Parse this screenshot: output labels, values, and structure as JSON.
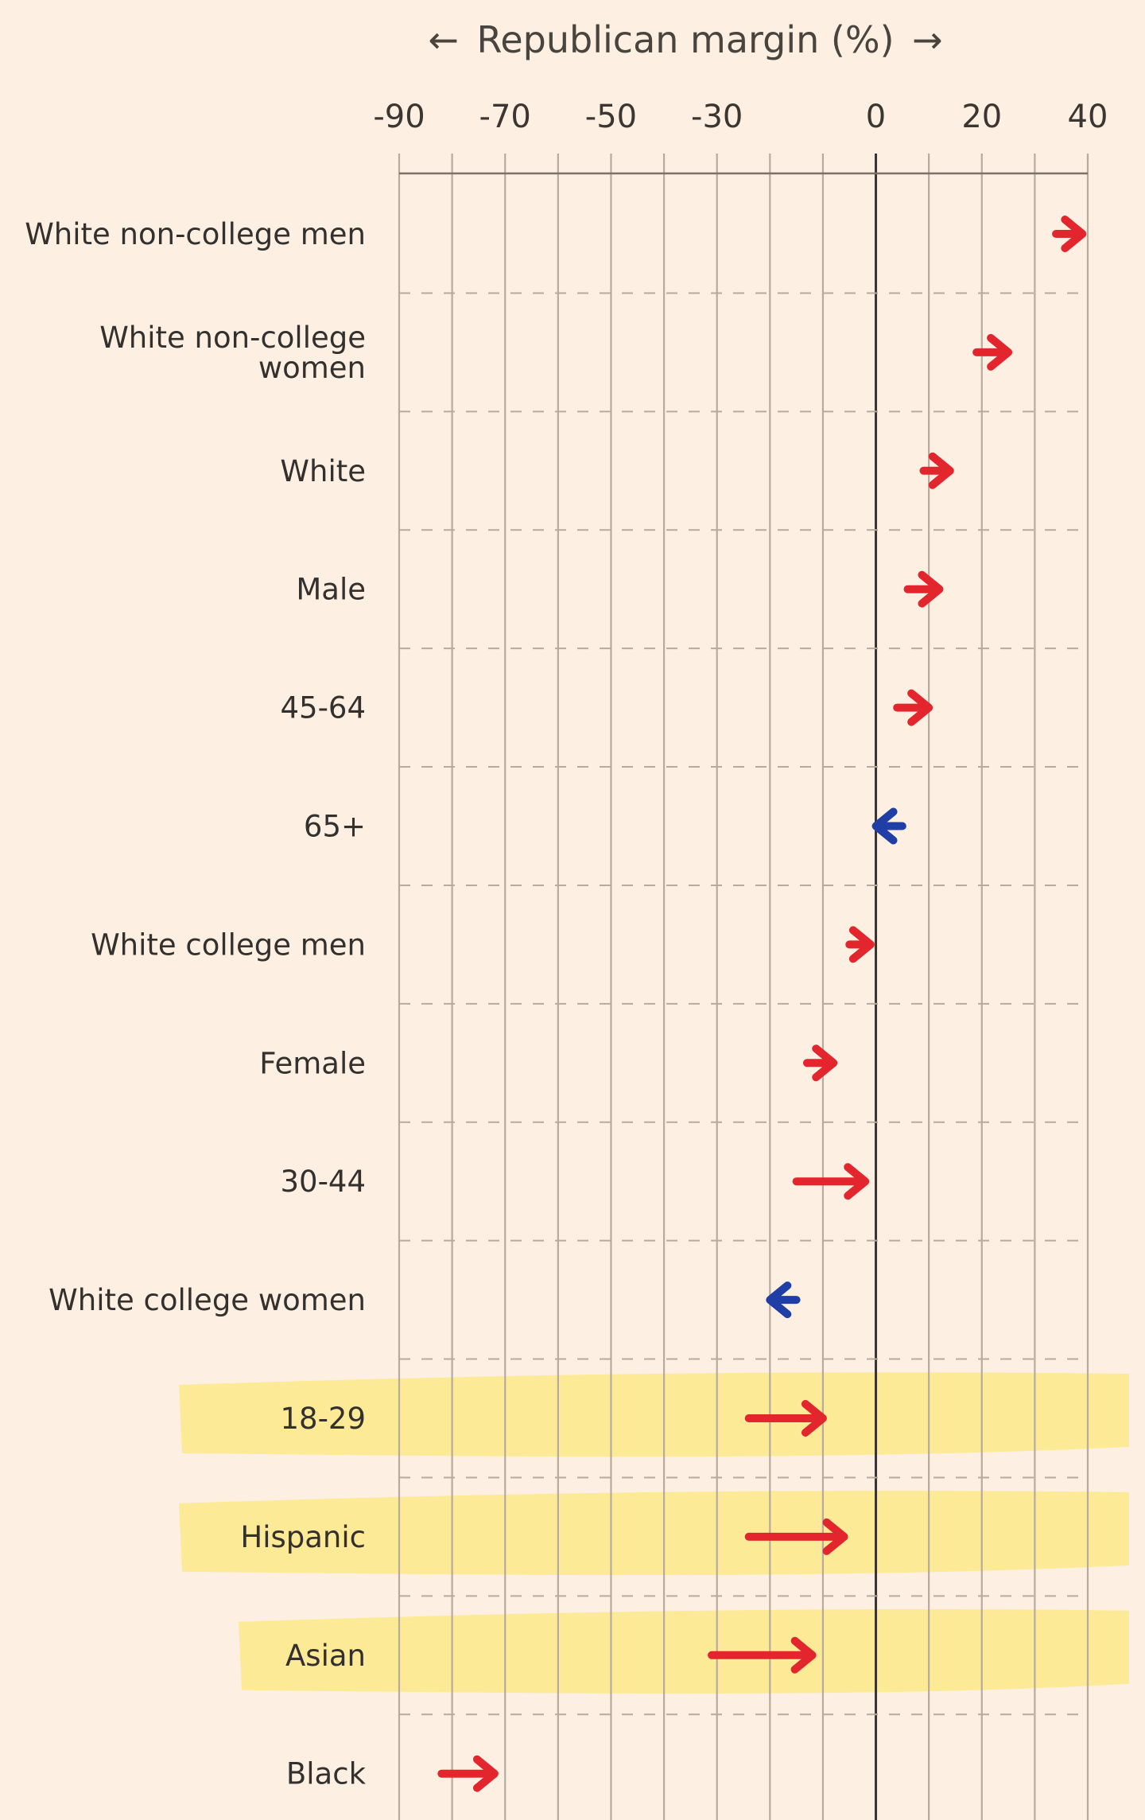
{
  "chart_data": {
    "type": "arrow",
    "title": "← Republican margin (%) →",
    "title_parts": {
      "left_arrow": "←",
      "text": "Republican margin (%)",
      "right_arrow": "→"
    },
    "xlabel": "Republican margin (%)",
    "xlim": [
      -90,
      40
    ],
    "xticks": [
      -90,
      -70,
      -50,
      -30,
      0,
      20,
      40
    ],
    "minor_gridlines_every": 10,
    "grid": true,
    "colors": {
      "rightward": "#e3262e",
      "leftward": "#1f3fa6",
      "highlight": "#fbe98a",
      "background": "#fdf0e3",
      "zero_line": "#3a332d",
      "gridline": "#b7aa9e"
    },
    "categories": [
      {
        "label": [
          "White non-college men"
        ],
        "from": 34,
        "to": 39,
        "highlight": false
      },
      {
        "label": [
          "White non-college",
          "women"
        ],
        "from": 19,
        "to": 25,
        "highlight": false
      },
      {
        "label": [
          "White"
        ],
        "from": 9,
        "to": 14,
        "highlight": false
      },
      {
        "label": [
          "Male"
        ],
        "from": 6,
        "to": 12,
        "highlight": false
      },
      {
        "label": [
          "45-64"
        ],
        "from": 4,
        "to": 10,
        "highlight": false
      },
      {
        "label": [
          "65+"
        ],
        "from": 5,
        "to": 0,
        "highlight": false
      },
      {
        "label": [
          "White college men"
        ],
        "from": -5,
        "to": -1,
        "highlight": false
      },
      {
        "label": [
          "Female"
        ],
        "from": -13,
        "to": -8,
        "highlight": false
      },
      {
        "label": [
          "30-44"
        ],
        "from": -15,
        "to": -2,
        "highlight": false
      },
      {
        "label": [
          "White college women"
        ],
        "from": -15,
        "to": -20,
        "highlight": false
      },
      {
        "label": [
          "18-29"
        ],
        "from": -24,
        "to": -10,
        "highlight": true
      },
      {
        "label": [
          "Hispanic"
        ],
        "from": -24,
        "to": -6,
        "highlight": true
      },
      {
        "label": [
          "Asian"
        ],
        "from": -31,
        "to": -12,
        "highlight": true
      },
      {
        "label": [
          "Black"
        ],
        "from": -82,
        "to": -72,
        "highlight": false
      }
    ]
  }
}
